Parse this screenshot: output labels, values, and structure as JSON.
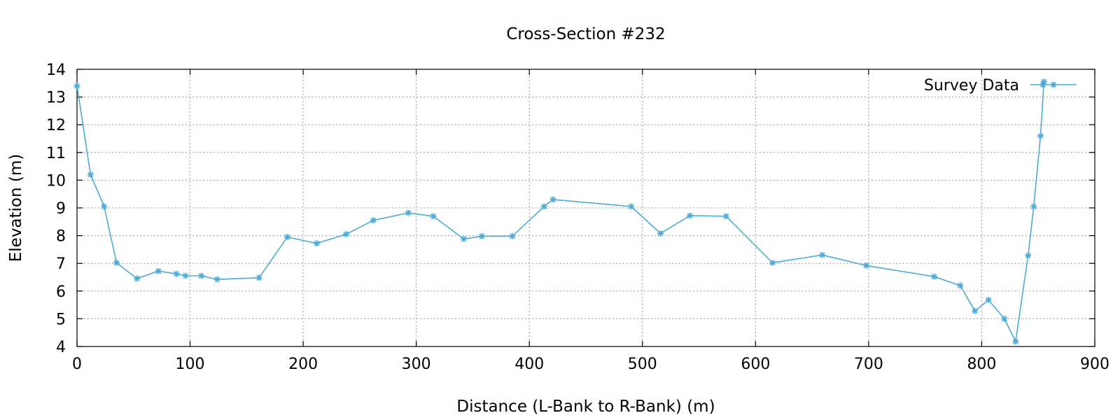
{
  "chart_data": {
    "type": "line",
    "title": "Cross-Section #232",
    "xlabel": "Distance (L-Bank to R-Bank) (m)",
    "ylabel": "Elevation (m)",
    "xlim": [
      0,
      900
    ],
    "ylim": [
      4,
      14
    ],
    "xticks": [
      0,
      100,
      200,
      300,
      400,
      500,
      600,
      700,
      800,
      900
    ],
    "yticks": [
      4,
      5,
      6,
      7,
      8,
      9,
      10,
      11,
      12,
      13,
      14
    ],
    "grid": true,
    "legend_position": "top-right",
    "series": [
      {
        "name": "Survey Data",
        "color": "#4aabd9",
        "marker": "asterisk",
        "x": [
          0,
          12,
          24,
          35,
          53,
          72,
          88,
          96,
          110,
          124,
          161,
          186,
          212,
          238,
          262,
          293,
          315,
          342,
          358,
          385,
          413,
          421,
          490,
          516,
          542,
          574,
          615,
          659,
          698,
          758,
          781,
          794,
          806,
          820,
          830,
          841,
          846,
          852,
          855
        ],
        "y": [
          13.4,
          10.2,
          9.05,
          7.02,
          6.45,
          6.72,
          6.62,
          6.55,
          6.55,
          6.42,
          6.48,
          7.95,
          7.72,
          8.05,
          8.55,
          8.82,
          8.7,
          7.88,
          7.98,
          7.98,
          9.05,
          9.3,
          9.05,
          8.08,
          8.72,
          8.7,
          7.02,
          7.3,
          6.92,
          6.52,
          6.2,
          5.28,
          5.68,
          5.0,
          4.18,
          7.28,
          9.05,
          11.6,
          13.55
        ]
      }
    ]
  }
}
